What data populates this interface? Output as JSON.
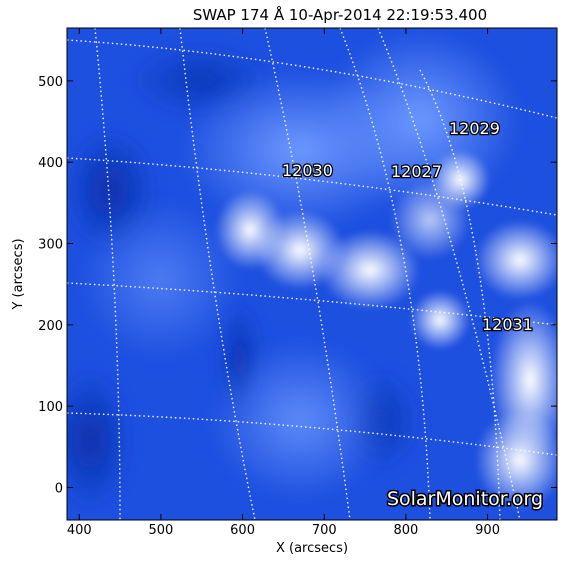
{
  "title": "SWAP 174 Å 10-Apr-2014 22:19:53.400",
  "xlabel": "X (arcsecs)",
  "ylabel": "Y (arcsecs)",
  "x_ticks": [
    400,
    500,
    600,
    700,
    800,
    900
  ],
  "y_ticks": [
    0,
    100,
    200,
    300,
    400,
    500
  ],
  "x_range": [
    385,
    985
  ],
  "y_range": [
    -40,
    565
  ],
  "regions": [
    {
      "label": "12029",
      "x": 880,
      "y": 445
    },
    {
      "label": "12030",
      "x": 680,
      "y": 395
    },
    {
      "label": "12027",
      "x": 810,
      "y": 390
    },
    {
      "label": "12031",
      "x": 915,
      "y": 205
    }
  ],
  "watermark": "SolarMonitor.org",
  "colors": {
    "background": "#1f4fe0",
    "bright": "#ffffff",
    "axis": "#000000"
  }
}
